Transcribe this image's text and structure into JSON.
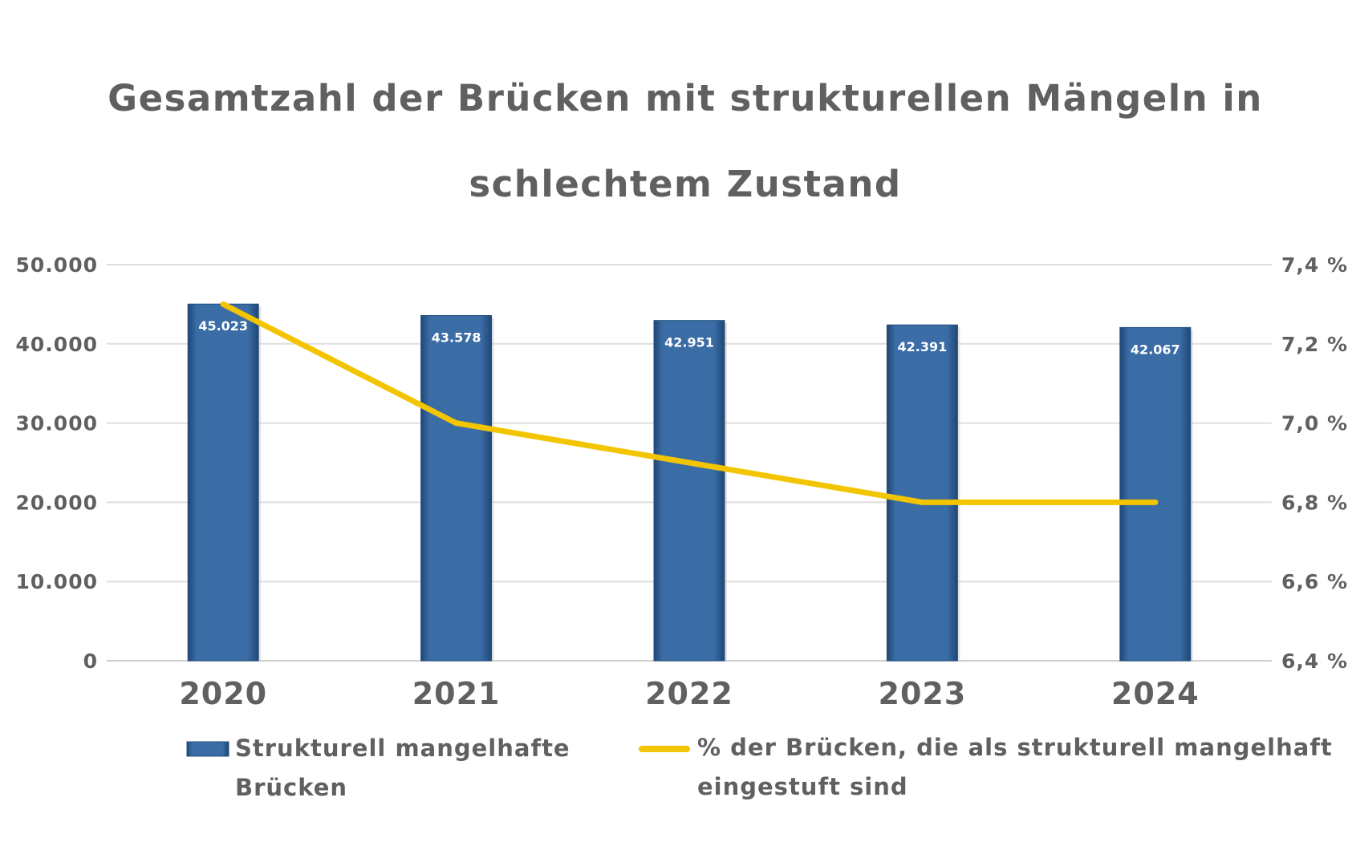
{
  "chart_data": {
    "type": "bar",
    "title_lines": [
      "Gesamtzahl der Brücken mit strukturellen Mängeln in",
      "schlechtem Zustand"
    ],
    "categories": [
      "2020",
      "2021",
      "2022",
      "2023",
      "2024"
    ],
    "series": [
      {
        "name": "Strukturell mangelhafte Brücken",
        "legend_lines": [
          "Strukturell mangelhafte",
          "Brücken"
        ],
        "type": "bar",
        "axis": "left",
        "color": "#3A6CA5",
        "values": [
          45023,
          43578,
          42951,
          42391,
          42067
        ],
        "labels": [
          "45.023",
          "43.578",
          "42.951",
          "42.391",
          "42.067"
        ]
      },
      {
        "name": "% der Brücken, die als strukturell mangelhaft eingestuft sind",
        "legend_lines": [
          "% der Brücken, die als strukturell mangelhaft",
          "eingestuft sind"
        ],
        "type": "line",
        "axis": "right",
        "color": "#F2C500",
        "values": [
          7.3,
          7.0,
          6.9,
          6.8,
          6.8
        ]
      }
    ],
    "y_left": {
      "ylim": [
        0,
        50000
      ],
      "ticks": [
        0,
        10000,
        20000,
        30000,
        40000,
        50000
      ],
      "tick_labels": [
        "0",
        "10.000",
        "20.000",
        "30.000",
        "40.000",
        "50.000"
      ]
    },
    "y_right": {
      "ylim": [
        6.4,
        7.4
      ],
      "ticks": [
        6.4,
        6.6,
        6.8,
        7.0,
        7.2,
        7.4
      ],
      "tick_labels": [
        "6,4 %",
        "6,6 %",
        "6,8 %",
        "7,0 %",
        "7,2 %",
        "7,4 %"
      ]
    },
    "grid": true,
    "legend_position": "bottom"
  }
}
